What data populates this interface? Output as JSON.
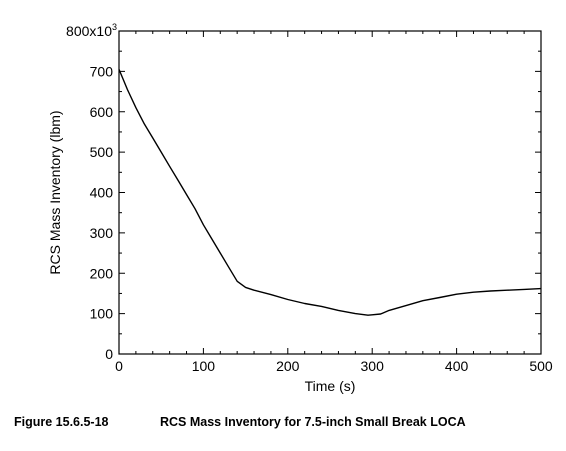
{
  "chart_data": {
    "type": "line",
    "title": "",
    "xlabel": "Time (s)",
    "ylabel": "RCS Mass Inventory (lbm)",
    "xlim": [
      0,
      500
    ],
    "ylim": [
      0,
      800
    ],
    "xticks": [
      0,
      100,
      200,
      300,
      400,
      500
    ],
    "yticks": [
      0,
      100,
      200,
      300,
      400,
      500,
      600,
      700,
      800
    ],
    "ytick_labels": [
      "0",
      "100",
      "200",
      "300",
      "400",
      "500",
      "600",
      "700",
      "800x10"
    ],
    "y_multiplier_exponent": "3",
    "grid": false,
    "legend": "none",
    "series": [
      {
        "x": [
          0,
          5,
          10,
          20,
          30,
          40,
          50,
          60,
          70,
          80,
          90,
          100,
          110,
          120,
          130,
          140,
          150,
          160,
          180,
          200,
          220,
          240,
          260,
          280,
          295,
          300,
          310,
          320,
          340,
          360,
          380,
          400,
          420,
          440,
          460,
          480,
          500
        ],
        "y": [
          705,
          680,
          655,
          610,
          570,
          535,
          500,
          465,
          430,
          395,
          360,
          320,
          285,
          250,
          215,
          180,
          165,
          158,
          147,
          135,
          125,
          118,
          108,
          100,
          96,
          97,
          99,
          108,
          120,
          132,
          140,
          148,
          153,
          156,
          158,
          160,
          162
        ],
        "color": "#000000"
      }
    ]
  },
  "caption": {
    "figure_number": "Figure 15.6.5-18",
    "text": "RCS Mass Inventory for 7.5-inch Small Break LOCA"
  }
}
